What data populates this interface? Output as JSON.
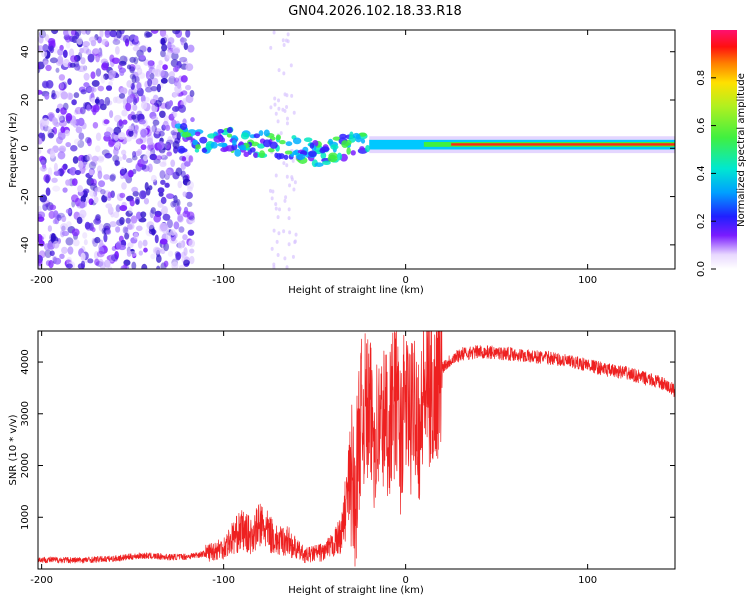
{
  "title": "GN04.2026.102.18.33.R18",
  "chart_data": [
    {
      "type": "heatmap",
      "xlabel": "Height of straight line (km)",
      "ylabel": "Frequency (Hz)",
      "xlim": [
        -202,
        148
      ],
      "ylim": [
        -50,
        49
      ],
      "xticks": [
        -200,
        -100,
        0,
        100
      ],
      "yticks": [
        -40,
        -20,
        0,
        20,
        40
      ],
      "colorbar": {
        "label": "Normalized spectral amplitude",
        "range": [
          0,
          1
        ],
        "ticks": [
          0,
          0.2,
          0.4,
          0.6,
          0.8
        ]
      },
      "description_series": [
        {
          "name": "main frequency track",
          "x": [
            -120,
            -100,
            -80,
            -60,
            -45,
            -30,
            -20,
            0,
            50,
            100,
            148
          ],
          "y": [
            4,
            3,
            2,
            0,
            -3,
            2,
            3,
            2,
            1.5,
            1.5,
            1.5
          ]
        }
      ]
    },
    {
      "type": "line",
      "xlabel": "Height of straight line (km)",
      "ylabel": "SNR (10 * v/v)",
      "xlim": [
        -202,
        148
      ],
      "ylim": [
        0,
        4600
      ],
      "xticks": [
        -200,
        -100,
        0,
        100
      ],
      "yticks": [
        1000,
        2000,
        3000,
        4000
      ],
      "series": [
        {
          "name": "SNR",
          "x": [
            -202,
            -180,
            -160,
            -145,
            -130,
            -120,
            -110,
            -100,
            -95,
            -90,
            -85,
            -80,
            -75,
            -70,
            -65,
            -60,
            -55,
            -50,
            -45,
            -40,
            -35,
            -30,
            -28,
            -25,
            -22,
            -20,
            -17,
            -15,
            -12,
            -10,
            -7,
            -5,
            -3,
            0,
            3,
            5,
            8,
            10,
            15,
            20,
            25,
            30,
            40,
            50,
            60,
            70,
            80,
            90,
            100,
            110,
            120,
            130,
            140,
            148
          ],
          "y": [
            180,
            170,
            200,
            260,
            230,
            240,
            300,
            420,
            600,
            750,
            640,
            850,
            700,
            520,
            560,
            380,
            260,
            300,
            330,
            450,
            700,
            1900,
            1200,
            2900,
            3100,
            3000,
            2600,
            2700,
            2900,
            2800,
            3100,
            3300,
            2500,
            3300,
            2800,
            3400,
            2600,
            3500,
            3300,
            3900,
            4050,
            4150,
            4200,
            4180,
            4150,
            4100,
            4080,
            4000,
            3950,
            3850,
            3800,
            3700,
            3600,
            3450
          ]
        }
      ]
    }
  ]
}
